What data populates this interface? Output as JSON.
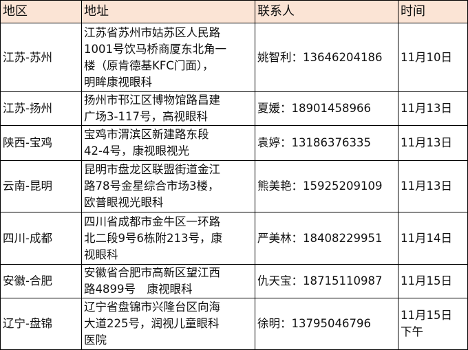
{
  "header": {
    "region": "地区",
    "address": "地址",
    "contact": "联系人",
    "time": "时间"
  },
  "header_bg": "#fbe4d5",
  "rows": [
    {
      "region": "江苏-苏州",
      "address": "江苏省苏州市姑苏区人民路\n1001号饮马桥商厦东北角一\n楼（原肯德基KFC门面），\n明眸康视眼科",
      "contact": "姚智利：13646204186",
      "time": "11月10日"
    },
    {
      "region": "江苏-扬州",
      "address": "扬州市邗江区博物馆路昌建\n广场3-117号，高视眼科",
      "contact": "夏媛：18901458966",
      "time": "11月13日"
    },
    {
      "region": "陕西-宝鸡",
      "address": "宝鸡市渭滨区新建路东段\n42-4号，康视眼视光",
      "contact": "袁婷：13186376335",
      "time": "11月13日"
    },
    {
      "region": "云南-昆明",
      "address": "昆明市盘龙区联盟街道金江\n路78号金星综合市场3楼，\n欧普眼视光眼科",
      "contact": "熊美艳：15925209109",
      "time": "11月13日"
    },
    {
      "region": "四川-成都",
      "address": "四川省成都市金牛区一环路\n北二段9号6栋附213号，康\n视眼科",
      "contact": "严美林：18408229951",
      "time": "11月14日"
    },
    {
      "region": "安徽-合肥",
      "address": "安徽省合肥市高新区望江西\n路4899号　康视眼科",
      "contact": "仇天宝：18715110987",
      "time": "11月15日"
    },
    {
      "region": "辽宁-盘锦",
      "address": "辽宁省盘锦市兴隆台区向海\n大道225号，润视儿童眼科\n医院",
      "contact": "徐明：13795046796",
      "time": "11月15日\n下午"
    }
  ]
}
